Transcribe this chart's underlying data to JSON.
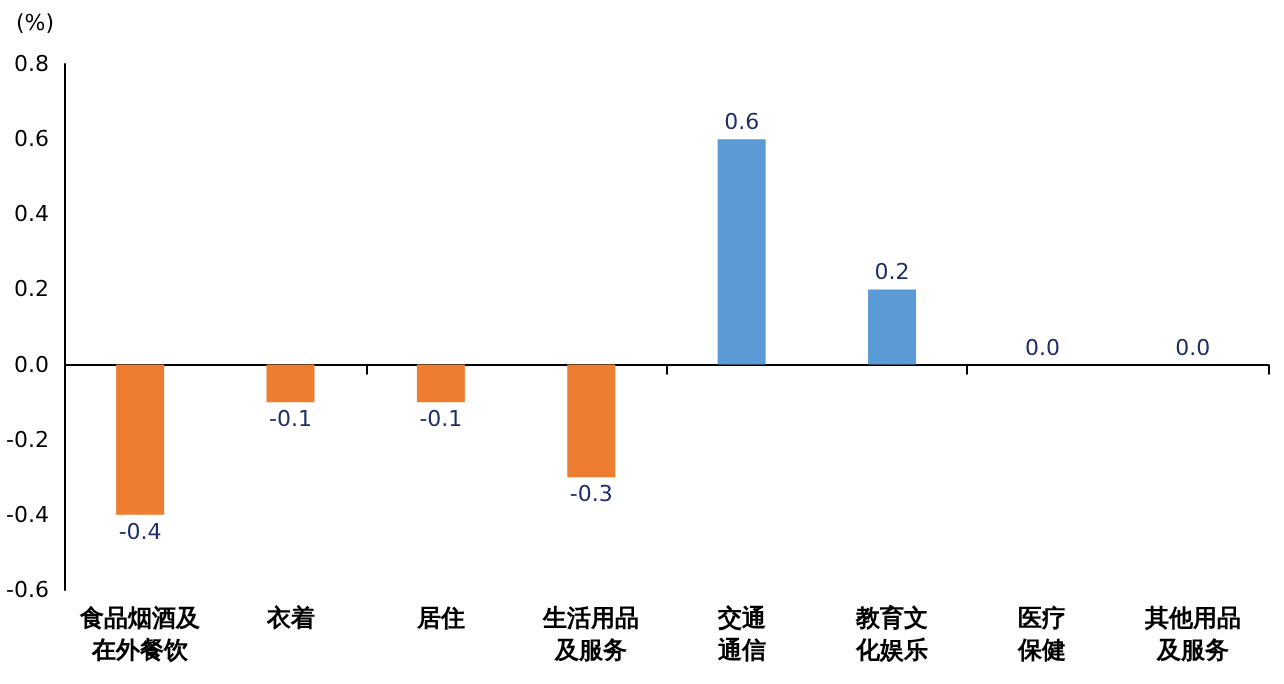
{
  "chart_data": {
    "type": "bar",
    "ylabel": "(%)",
    "categories": [
      "食品烟酒及在外餐饮",
      "衣着",
      "居住",
      "生活用品及服务",
      "交通通信",
      "教育文化娱乐",
      "医疗保健",
      "其他用品及服务"
    ],
    "values": [
      -0.4,
      -0.1,
      -0.1,
      -0.3,
      0.6,
      0.2,
      0.0,
      0.0
    ],
    "colors": [
      "#ed7d31",
      "#ed7d31",
      "#ed7d31",
      "#ed7d31",
      "#5b9bd5",
      "#5b9bd5",
      "#5b9bd5",
      "#5b9bd5"
    ],
    "value_labels": [
      "-0.4",
      "-0.1",
      "-0.1",
      "-0.3",
      "0.6",
      "0.2",
      "0.0",
      "0.0"
    ],
    "ylim": [
      -0.6,
      0.8
    ],
    "yticks": [
      {
        "value": -0.6,
        "label": "-0.6"
      },
      {
        "value": -0.4,
        "label": "-0.4"
      },
      {
        "value": -0.2,
        "label": "-0.2"
      },
      {
        "value": 0,
        "label": "0.0"
      },
      {
        "value": 0.2,
        "label": "0.2"
      },
      {
        "value": 0.4,
        "label": "0.4"
      },
      {
        "value": 0.6,
        "label": "0.6"
      },
      {
        "value": 0.8,
        "label": "0.8"
      }
    ]
  }
}
